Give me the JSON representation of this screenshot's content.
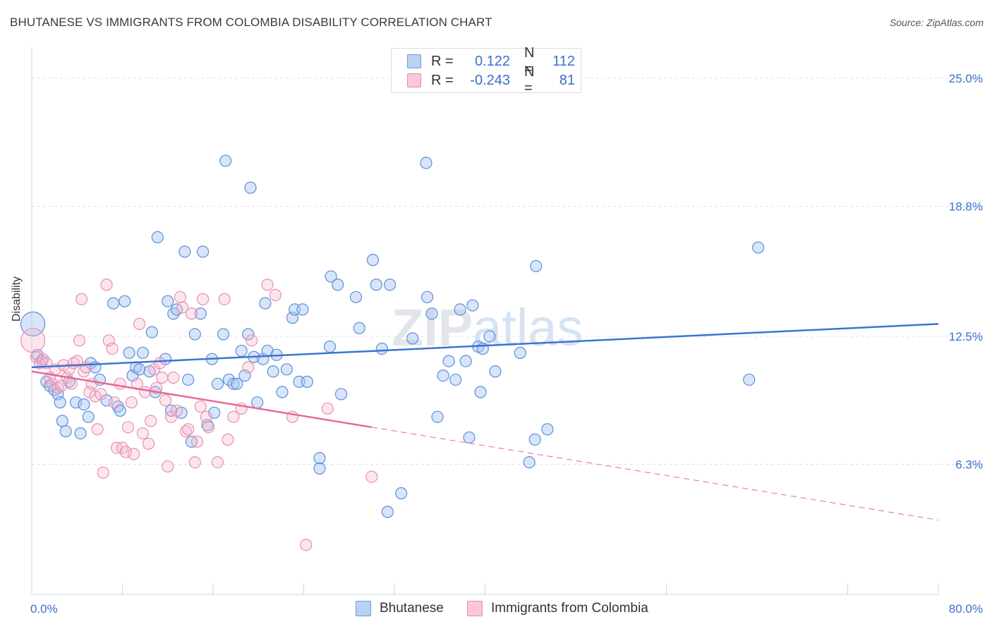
{
  "title": "BHUTANESE VS IMMIGRANTS FROM COLOMBIA DISABILITY CORRELATION CHART",
  "source": "Source: ZipAtlas.com",
  "watermark": "ZIPatlas",
  "colors": {
    "blue": "#3b75d0",
    "blue_fill": "#a8c6f0",
    "pink": "#e8689a",
    "pink_fill": "#f5b7cd",
    "axis_label": "#3b6fc9",
    "grid": "#dde3ea"
  },
  "legend": {
    "rows": [
      {
        "r_label": "R =",
        "r_value": "0.122",
        "n_label": "N =",
        "n_value": "112"
      },
      {
        "r_label": "R =",
        "r_value": "-0.243",
        "n_label": "N =",
        "n_value": "81"
      }
    ]
  },
  "bottom_legend": {
    "series1": "Bhutanese",
    "series2": "Immigrants from Colombia"
  },
  "chart_data": {
    "type": "scatter",
    "ylabel": "Disability",
    "xlim": [
      0,
      80
    ],
    "ylim": [
      0,
      26.5
    ],
    "x_tick_labels": [
      "0.0%",
      "80.0%"
    ],
    "y_ticks": [
      6.3,
      12.5,
      18.8,
      25.0
    ],
    "y_tick_labels": [
      "6.3%",
      "12.5%",
      "18.8%",
      "25.0%"
    ],
    "grid": true,
    "series": [
      {
        "name": "Bhutanese",
        "color": "#3b75d0",
        "trend": {
          "x": [
            0,
            80
          ],
          "y": [
            11.0,
            13.1
          ],
          "style": "solid"
        },
        "points": [
          [
            0.1,
            13.1,
            "L"
          ],
          [
            0.5,
            11.6
          ],
          [
            0.9,
            11.3
          ],
          [
            1.3,
            10.3
          ],
          [
            1.6,
            10.1
          ],
          [
            2.0,
            9.9
          ],
          [
            2.3,
            9.7
          ],
          [
            2.5,
            9.3
          ],
          [
            2.7,
            8.4
          ],
          [
            3.0,
            7.9
          ],
          [
            3.3,
            10.3
          ],
          [
            3.9,
            9.3
          ],
          [
            4.3,
            7.8
          ],
          [
            4.6,
            9.2
          ],
          [
            5.0,
            8.6
          ],
          [
            5.2,
            11.2
          ],
          [
            5.6,
            11.0
          ],
          [
            6.0,
            10.4
          ],
          [
            6.6,
            9.4
          ],
          [
            7.2,
            14.1
          ],
          [
            7.6,
            9.1
          ],
          [
            7.8,
            8.9
          ],
          [
            8.2,
            14.2
          ],
          [
            8.6,
            11.7
          ],
          [
            8.9,
            10.6
          ],
          [
            9.2,
            11.0
          ],
          [
            9.5,
            10.9
          ],
          [
            9.8,
            11.7
          ],
          [
            10.4,
            10.8
          ],
          [
            10.6,
            12.7
          ],
          [
            10.9,
            9.8
          ],
          [
            11.1,
            17.3
          ],
          [
            11.8,
            11.4
          ],
          [
            12.0,
            14.2
          ],
          [
            12.3,
            8.9
          ],
          [
            12.5,
            13.6
          ],
          [
            12.8,
            13.8
          ],
          [
            13.2,
            8.8
          ],
          [
            13.5,
            16.6
          ],
          [
            13.8,
            10.4
          ],
          [
            14.1,
            7.4
          ],
          [
            14.4,
            12.6
          ],
          [
            14.9,
            13.6
          ],
          [
            15.5,
            8.2
          ],
          [
            15.1,
            16.6
          ],
          [
            15.9,
            11.4
          ],
          [
            16.1,
            8.8
          ],
          [
            16.4,
            10.2
          ],
          [
            16.9,
            12.6
          ],
          [
            17.1,
            21.0
          ],
          [
            17.4,
            10.4
          ],
          [
            17.8,
            10.2
          ],
          [
            18.1,
            10.2
          ],
          [
            18.5,
            11.8
          ],
          [
            18.8,
            10.6
          ],
          [
            19.1,
            12.6
          ],
          [
            19.3,
            19.7
          ],
          [
            19.6,
            11.5
          ],
          [
            19.9,
            9.3
          ],
          [
            20.4,
            11.4
          ],
          [
            20.6,
            14.1
          ],
          [
            20.8,
            11.8
          ],
          [
            21.3,
            10.8
          ],
          [
            21.6,
            11.6
          ],
          [
            22.1,
            9.8
          ],
          [
            22.5,
            10.9
          ],
          [
            23.0,
            13.4
          ],
          [
            23.2,
            13.8
          ],
          [
            23.6,
            10.3
          ],
          [
            23.9,
            13.8
          ],
          [
            24.3,
            10.3
          ],
          [
            25.4,
            6.6
          ],
          [
            25.4,
            6.1
          ],
          [
            26.3,
            12.0
          ],
          [
            26.4,
            15.4
          ],
          [
            27.0,
            15.0
          ],
          [
            27.3,
            9.7
          ],
          [
            28.6,
            14.4
          ],
          [
            28.9,
            12.9
          ],
          [
            30.1,
            16.2
          ],
          [
            30.4,
            15.0
          ],
          [
            30.9,
            11.9
          ],
          [
            31.4,
            4.0
          ],
          [
            31.6,
            15.0
          ],
          [
            32.6,
            4.9
          ],
          [
            33.6,
            12.4
          ],
          [
            34.8,
            20.9
          ],
          [
            34.9,
            14.4
          ],
          [
            35.3,
            13.6
          ],
          [
            35.8,
            8.6
          ],
          [
            36.3,
            10.6
          ],
          [
            36.8,
            11.3
          ],
          [
            37.4,
            10.4
          ],
          [
            37.8,
            13.8
          ],
          [
            38.3,
            11.3
          ],
          [
            38.6,
            7.6
          ],
          [
            38.9,
            14.0
          ],
          [
            39.4,
            12.0
          ],
          [
            39.6,
            9.8
          ],
          [
            39.8,
            11.9
          ],
          [
            40.4,
            12.5
          ],
          [
            40.9,
            10.8
          ],
          [
            43.1,
            11.7
          ],
          [
            43.9,
            6.4
          ],
          [
            44.4,
            7.5
          ],
          [
            44.5,
            15.9
          ],
          [
            45.5,
            8.0
          ],
          [
            63.3,
            10.4
          ],
          [
            64.1,
            16.8
          ]
        ]
      },
      {
        "name": "Immigrants from Colombia",
        "color": "#e8689a",
        "trend": {
          "x": [
            0,
            80
          ],
          "y": [
            10.8,
            3.6
          ],
          "style": "solid-then-dashed",
          "solid_until_x": 30
        },
        "points": [
          [
            0.1,
            12.3,
            "L"
          ],
          [
            0.4,
            11.5
          ],
          [
            0.7,
            11.2
          ],
          [
            1.0,
            11.4
          ],
          [
            1.3,
            11.2
          ],
          [
            1.6,
            10.5
          ],
          [
            1.8,
            10.2
          ],
          [
            2.1,
            10.9
          ],
          [
            2.3,
            10.0
          ],
          [
            2.6,
            10.1
          ],
          [
            2.8,
            11.1
          ],
          [
            3.1,
            10.5
          ],
          [
            3.3,
            10.9
          ],
          [
            3.5,
            10.2
          ],
          [
            3.7,
            11.2
          ],
          [
            4.0,
            11.3
          ],
          [
            4.2,
            12.3
          ],
          [
            4.4,
            14.3
          ],
          [
            4.6,
            10.8
          ],
          [
            4.8,
            11.0
          ],
          [
            5.1,
            9.8
          ],
          [
            5.3,
            10.2
          ],
          [
            5.6,
            9.6
          ],
          [
            5.8,
            8.0
          ],
          [
            6.1,
            9.7
          ],
          [
            6.3,
            5.9
          ],
          [
            6.6,
            15.0
          ],
          [
            6.8,
            12.3
          ],
          [
            7.1,
            11.9
          ],
          [
            7.3,
            9.3
          ],
          [
            7.5,
            7.1
          ],
          [
            7.8,
            10.2
          ],
          [
            8.0,
            7.1
          ],
          [
            8.3,
            6.9
          ],
          [
            8.5,
            8.1
          ],
          [
            8.8,
            9.3
          ],
          [
            9.0,
            6.8
          ],
          [
            9.3,
            10.2
          ],
          [
            9.5,
            13.1
          ],
          [
            9.8,
            7.8
          ],
          [
            10.0,
            9.8
          ],
          [
            10.3,
            7.3
          ],
          [
            10.5,
            8.4
          ],
          [
            10.8,
            10.9
          ],
          [
            11.0,
            10.0
          ],
          [
            11.3,
            11.2
          ],
          [
            11.5,
            10.5
          ],
          [
            11.8,
            9.4
          ],
          [
            12.0,
            6.2
          ],
          [
            12.3,
            8.6
          ],
          [
            12.5,
            10.5
          ],
          [
            12.8,
            8.9
          ],
          [
            13.1,
            14.4
          ],
          [
            13.3,
            13.9
          ],
          [
            13.6,
            7.9
          ],
          [
            13.8,
            8.0
          ],
          [
            14.1,
            13.6
          ],
          [
            14.4,
            6.4
          ],
          [
            14.6,
            7.4
          ],
          [
            14.9,
            9.1
          ],
          [
            15.1,
            14.3
          ],
          [
            15.4,
            8.6
          ],
          [
            15.6,
            8.1
          ],
          [
            16.4,
            6.4
          ],
          [
            17.0,
            14.3
          ],
          [
            17.3,
            7.5
          ],
          [
            17.8,
            8.6
          ],
          [
            18.5,
            9.0
          ],
          [
            19.1,
            11.0
          ],
          [
            19.4,
            12.3
          ],
          [
            20.8,
            15.0
          ],
          [
            21.5,
            14.5
          ],
          [
            23.0,
            8.6
          ],
          [
            24.2,
            2.4
          ],
          [
            26.1,
            9.0
          ],
          [
            30.0,
            5.7
          ]
        ]
      }
    ]
  }
}
